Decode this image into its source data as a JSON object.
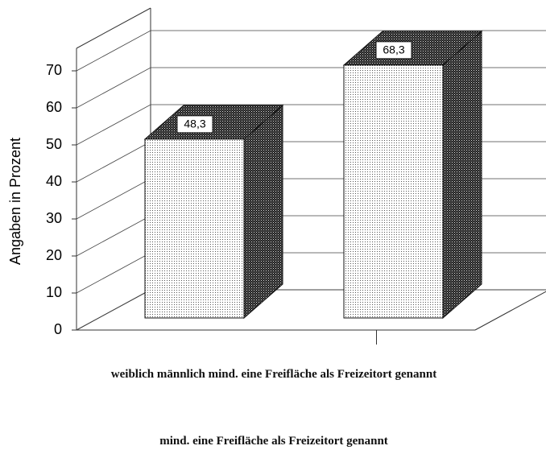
{
  "chart_data": {
    "type": "bar3d",
    "categories": [
      null,
      null
    ],
    "values": [
      48.3,
      68.3
    ],
    "value_labels": [
      "48,3",
      "68,3"
    ],
    "ylabel": "Angaben in Prozent",
    "xlabel": "weiblich männlich mind. eine Freifläche als Freizeitort genannt",
    "caption": "mind. eine Freifläche als Freizeitort genannt",
    "ylim": [
      0,
      70
    ],
    "yticks": [
      0,
      10,
      20,
      30,
      40,
      50,
      60,
      70
    ],
    "grid": true
  }
}
